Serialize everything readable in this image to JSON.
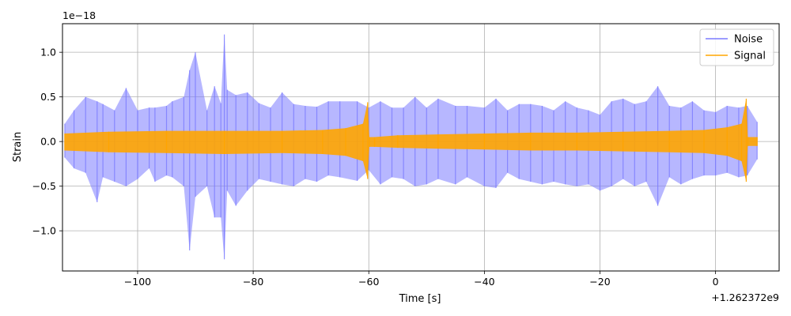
{
  "chart_data": {
    "type": "line",
    "xlabel": "Time [s]",
    "ylabel": "Strain",
    "x_offset_label": "+1.262372e9",
    "y_scale_label": "1e−18",
    "xlim": [
      -113,
      11
    ],
    "ylim": [
      -1.45,
      1.32
    ],
    "x_ticks": [
      -100,
      -80,
      -60,
      -40,
      -20,
      0
    ],
    "x_tick_labels": [
      "−100",
      "−80",
      "−60",
      "−40",
      "−20",
      "0"
    ],
    "y_ticks": [
      -1.0,
      -0.5,
      0.0,
      0.5,
      1.0
    ],
    "y_tick_labels": [
      "−1.0",
      "−0.5",
      "0.0",
      "0.5",
      "1.0"
    ],
    "grid": true,
    "legend_position": "top-right",
    "colors": {
      "noise": "#7b7bff",
      "signal": "#ffa500"
    },
    "series": [
      {
        "name": "Noise",
        "color": "#7b7bff",
        "x": [
          -112.6,
          -111,
          -109,
          -107,
          -106,
          -104,
          -102,
          -100,
          -98,
          -97,
          -95,
          -94,
          -92,
          -91,
          -90,
          -88,
          -86.7,
          -85.6,
          -85,
          -84.5,
          -83,
          -81,
          -79,
          -77,
          -75,
          -73,
          -71,
          -69,
          -67,
          -65,
          -62,
          -60,
          -58,
          -56,
          -54,
          -52,
          -50,
          -48,
          -45,
          -43,
          -40,
          -38,
          -36,
          -34,
          -32,
          -30,
          -28,
          -26,
          -24,
          -22,
          -20,
          -18,
          -16,
          -14,
          -12,
          -10,
          -8,
          -6,
          -4,
          -2,
          0,
          2,
          4,
          5.5,
          7.2
        ],
        "y_max": [
          0.2,
          0.35,
          0.5,
          0.45,
          0.42,
          0.35,
          0.6,
          0.35,
          0.38,
          0.38,
          0.4,
          0.45,
          0.5,
          0.8,
          1.0,
          0.35,
          0.62,
          0.43,
          1.2,
          0.58,
          0.52,
          0.55,
          0.43,
          0.38,
          0.55,
          0.42,
          0.4,
          0.39,
          0.45,
          0.45,
          0.45,
          0.38,
          0.45,
          0.38,
          0.38,
          0.5,
          0.38,
          0.48,
          0.4,
          0.4,
          0.38,
          0.48,
          0.35,
          0.42,
          0.42,
          0.4,
          0.35,
          0.45,
          0.38,
          0.35,
          0.3,
          0.45,
          0.48,
          0.42,
          0.45,
          0.62,
          0.4,
          0.38,
          0.45,
          0.35,
          0.33,
          0.4,
          0.38,
          0.4,
          0.22
        ],
        "y_min": [
          -0.18,
          -0.3,
          -0.35,
          -0.68,
          -0.4,
          -0.45,
          -0.5,
          -0.42,
          -0.3,
          -0.45,
          -0.38,
          -0.4,
          -0.5,
          -1.22,
          -0.62,
          -0.5,
          -0.85,
          -0.85,
          -1.32,
          -0.55,
          -0.72,
          -0.55,
          -0.42,
          -0.45,
          -0.48,
          -0.5,
          -0.42,
          -0.45,
          -0.38,
          -0.4,
          -0.44,
          -0.32,
          -0.48,
          -0.4,
          -0.42,
          -0.5,
          -0.48,
          -0.42,
          -0.48,
          -0.4,
          -0.5,
          -0.52,
          -0.35,
          -0.42,
          -0.45,
          -0.48,
          -0.45,
          -0.48,
          -0.5,
          -0.48,
          -0.55,
          -0.5,
          -0.42,
          -0.5,
          -0.45,
          -0.72,
          -0.4,
          -0.48,
          -0.42,
          -0.38,
          -0.38,
          -0.35,
          -0.4,
          -0.38,
          -0.2
        ]
      },
      {
        "name": "Signal",
        "color": "#ffa500",
        "x": [
          -112.6,
          -105,
          -95,
          -85,
          -75,
          -68,
          -64,
          -61,
          -60.2,
          -59.9,
          -59,
          -55,
          -48,
          -40,
          -32,
          -24,
          -16,
          -8,
          -2,
          2,
          4.5,
          5.3,
          5.6,
          7.2
        ],
        "y_max": [
          0.09,
          0.11,
          0.12,
          0.12,
          0.12,
          0.13,
          0.15,
          0.2,
          0.44,
          0.05,
          0.05,
          0.07,
          0.08,
          0.09,
          0.1,
          0.1,
          0.11,
          0.12,
          0.13,
          0.16,
          0.2,
          0.48,
          0.05,
          0.05
        ],
        "y_min": [
          -0.1,
          -0.12,
          -0.13,
          -0.14,
          -0.13,
          -0.14,
          -0.16,
          -0.22,
          -0.42,
          -0.06,
          -0.06,
          -0.07,
          -0.08,
          -0.09,
          -0.1,
          -0.1,
          -0.11,
          -0.12,
          -0.13,
          -0.16,
          -0.22,
          -0.45,
          -0.05,
          -0.05
        ]
      }
    ]
  }
}
